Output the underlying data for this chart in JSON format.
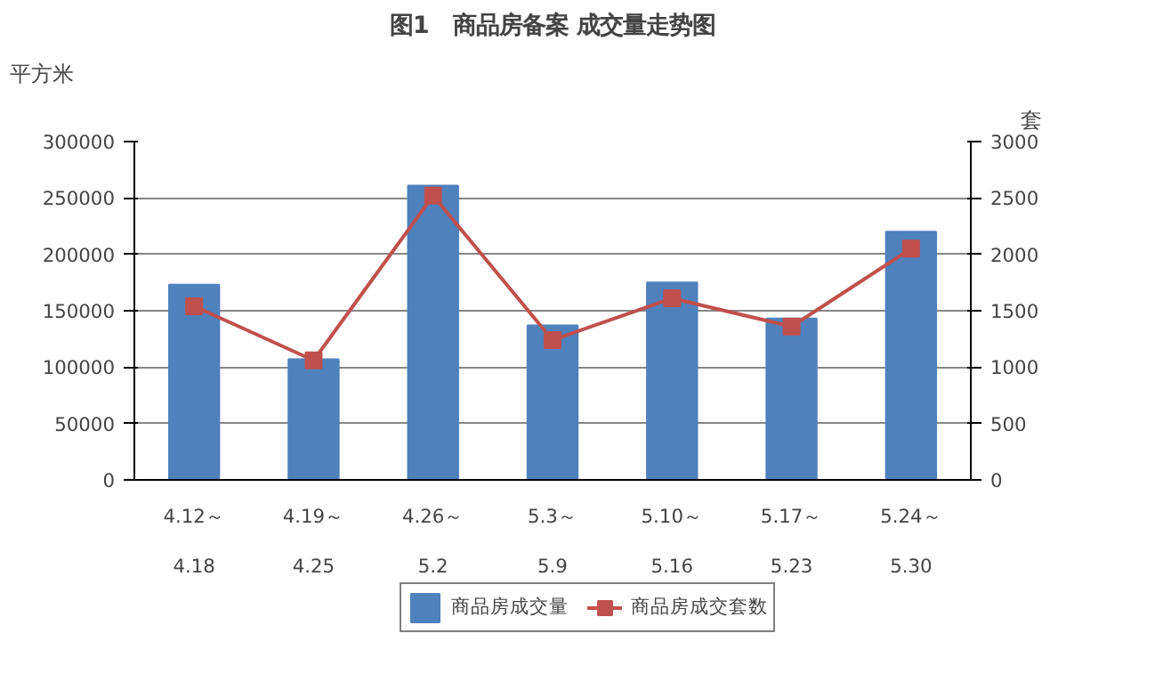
{
  "chart_data": {
    "type": "bar",
    "title": "图1　商品房备案 成交量走势图",
    "ylabel": "平方米",
    "y2label": "套",
    "categories": [
      "4.12～\n\n4.18",
      "4.19～\n\n4.25",
      "4.26～\n\n5.2",
      "5.3～\n\n5.9",
      "5.10～\n\n5.16",
      "5.17～\n\n5.23",
      "5.24～\n\n5.30"
    ],
    "series": [
      {
        "name": "商品房成交量",
        "color": "#4f81bd",
        "values": [
          173000,
          107000,
          261000,
          137000,
          175000,
          143000,
          220000
        ]
      },
      {
        "name": "商品房成交套数",
        "type": "line",
        "axis": "y2",
        "color": "#c0504d",
        "marker": "square",
        "values": [
          1540,
          1060,
          2520,
          1240,
          1610,
          1360,
          2050
        ]
      }
    ],
    "ylim": [
      0,
      300000
    ],
    "yticks": [
      0,
      50000,
      100000,
      150000,
      200000,
      250000,
      300000
    ],
    "y2lim": [
      0,
      3000
    ],
    "y2ticks": [
      0,
      500,
      1000,
      1500,
      2000,
      2500,
      3000
    ],
    "grid": "y",
    "legend": "bottom"
  }
}
